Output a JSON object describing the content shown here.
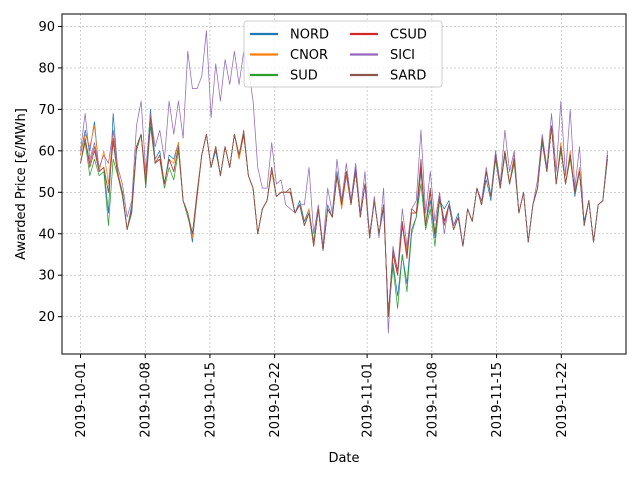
{
  "chart_data": {
    "type": "line",
    "xlabel": "Date",
    "ylabel": "Awarded Price [€/MWh]",
    "x_start": "2019-10-01",
    "x_end": "2019-11-27",
    "xlim": [
      "2019-09-29",
      "2019-11-29"
    ],
    "ylim": [
      11,
      93
    ],
    "y_ticks": [
      20,
      30,
      40,
      50,
      60,
      70,
      80,
      90
    ],
    "x_ticks": [
      "2019-10-01",
      "2019-10-08",
      "2019-10-15",
      "2019-10-22",
      "2019-11-01",
      "2019-11-08",
      "2019-11-15",
      "2019-11-22"
    ],
    "grid": true,
    "legend": {
      "placement": "top-center",
      "columns": 2
    },
    "series": [
      {
        "name": "NORD",
        "color": "#1f77b4",
        "values": [
          59,
          65,
          60,
          67,
          55,
          56,
          45,
          69,
          55,
          49,
          41,
          47,
          60,
          64,
          53,
          70,
          58,
          60,
          52,
          59,
          58,
          62,
          48,
          45,
          38,
          49,
          59,
          64,
          56,
          60,
          54,
          61,
          56,
          64,
          58,
          64,
          54,
          51,
          40,
          46,
          48,
          55,
          49,
          50,
          50,
          50,
          45,
          48,
          43,
          46,
          38,
          46,
          36,
          47,
          44,
          55,
          47,
          55,
          48,
          56,
          44,
          52,
          40,
          48,
          40,
          46,
          21,
          33,
          25,
          35,
          28,
          41,
          44,
          55,
          42,
          48,
          39,
          48,
          46,
          48,
          42,
          45,
          37,
          46,
          43,
          51,
          47,
          53,
          48,
          58,
          51,
          59,
          52,
          59,
          45,
          50,
          38,
          47,
          51,
          62,
          55,
          66,
          52,
          61,
          52,
          59,
          49,
          55,
          43,
          48,
          38,
          47,
          48,
          58
        ]
      },
      {
        "name": "CNOR",
        "color": "#ff7f0e",
        "values": [
          59,
          64,
          61,
          66,
          55,
          60,
          52,
          65,
          55,
          50,
          41,
          46,
          61,
          64,
          54,
          68,
          57,
          59,
          52,
          58,
          57,
          62,
          48,
          45,
          39,
          49,
          59,
          64,
          56,
          61,
          54,
          61,
          56,
          64,
          58,
          64,
          54,
          51,
          40,
          46,
          48,
          55,
          49,
          50,
          50,
          50,
          45,
          47,
          42,
          46,
          37,
          46,
          36,
          46,
          44,
          54,
          46,
          54,
          47,
          55,
          44,
          52,
          39,
          48,
          40,
          47,
          21,
          35,
          30,
          42,
          36,
          45,
          45,
          57,
          42,
          50,
          40,
          49,
          43,
          47,
          41,
          44,
          37,
          46,
          43,
          51,
          47,
          55,
          49,
          59,
          51,
          60,
          52,
          59,
          45,
          50,
          38,
          47,
          51,
          63,
          55,
          66,
          52,
          62,
          52,
          60,
          50,
          56,
          42,
          48,
          38,
          47,
          48,
          59
        ]
      },
      {
        "name": "SUD",
        "color": "#2ca02c",
        "values": [
          57,
          62,
          54,
          58,
          54,
          55,
          42,
          58,
          54,
          49,
          41,
          45,
          60,
          64,
          51,
          66,
          57,
          58,
          51,
          56,
          53,
          60,
          48,
          44,
          40,
          50,
          59,
          64,
          56,
          61,
          54,
          61,
          56,
          64,
          59,
          64,
          54,
          51,
          40,
          46,
          48,
          56,
          49,
          50,
          50,
          50,
          45,
          47,
          42,
          45,
          38,
          46,
          36,
          46,
          44,
          54,
          47,
          55,
          47,
          55,
          44,
          52,
          39,
          48,
          40,
          47,
          20,
          32,
          22,
          35,
          26,
          40,
          44,
          52,
          41,
          46,
          37,
          48,
          43,
          47,
          41,
          44,
          37,
          46,
          43,
          51,
          47,
          55,
          49,
          58,
          51,
          59,
          52,
          57,
          45,
          50,
          38,
          47,
          51,
          62,
          55,
          66,
          52,
          60,
          52,
          58,
          50,
          55,
          42,
          48,
          38,
          47,
          48,
          58
        ]
      },
      {
        "name": "CSUD",
        "color": "#d62728",
        "values": [
          57,
          63,
          56,
          60,
          55,
          56,
          50,
          63,
          54,
          50,
          41,
          46,
          61,
          64,
          52,
          68,
          57,
          58,
          52,
          58,
          55,
          61,
          48,
          45,
          40,
          50,
          59,
          64,
          56,
          61,
          54,
          61,
          56,
          64,
          59,
          64,
          54,
          51,
          40,
          46,
          48,
          56,
          49,
          50,
          50,
          50,
          45,
          47,
          42,
          45,
          37,
          46,
          36,
          46,
          44,
          54,
          47,
          55,
          47,
          55,
          44,
          52,
          39,
          48,
          40,
          47,
          20,
          35,
          30,
          42,
          34,
          45,
          45,
          56,
          42,
          50,
          40,
          49,
          43,
          47,
          41,
          44,
          37,
          46,
          43,
          51,
          47,
          55,
          49,
          59,
          51,
          60,
          52,
          58,
          45,
          50,
          38,
          47,
          51,
          63,
          55,
          66,
          52,
          61,
          52,
          59,
          50,
          55,
          42,
          48,
          38,
          47,
          48,
          59
        ]
      },
      {
        "name": "SICI",
        "color": "#9467bd",
        "values": [
          60,
          69,
          58,
          62,
          56,
          59,
          57,
          65,
          56,
          52,
          44,
          48,
          66,
          72,
          55,
          69,
          61,
          65,
          58,
          72,
          64,
          72,
          63,
          84,
          75,
          75,
          78,
          89,
          68,
          81,
          72,
          82,
          76,
          84,
          76,
          84,
          80,
          72,
          56,
          51,
          51,
          62,
          52,
          53,
          47,
          46,
          45,
          47,
          47,
          56,
          40,
          47,
          37,
          51,
          45,
          58,
          48,
          57,
          48,
          57,
          45,
          55,
          39,
          49,
          39,
          51,
          16,
          37,
          31,
          46,
          37,
          46,
          48,
          65,
          45,
          55,
          43,
          50,
          40,
          47,
          42,
          44,
          37,
          46,
          43,
          51,
          48,
          56,
          49,
          60,
          52,
          65,
          55,
          60,
          45,
          50,
          38,
          47,
          53,
          64,
          56,
          69,
          55,
          72,
          54,
          70,
          51,
          61,
          42,
          48,
          38,
          47,
          48,
          60
        ]
      },
      {
        "name": "SARD",
        "color": "#8c564b",
        "values": [
          57,
          63,
          57,
          61,
          55,
          56,
          50,
          62,
          54,
          50,
          41,
          46,
          61,
          64,
          52,
          68,
          57,
          59,
          52,
          58,
          55,
          61,
          48,
          45,
          40,
          49,
          59,
          64,
          56,
          61,
          54,
          61,
          56,
          64,
          59,
          65,
          54,
          51,
          40,
          46,
          48,
          56,
          49,
          50,
          50,
          51,
          45,
          47,
          42,
          45,
          37,
          46,
          36,
          46,
          44,
          54,
          47,
          55,
          47,
          55,
          44,
          52,
          39,
          48,
          40,
          47,
          20,
          36,
          31,
          43,
          35,
          46,
          45,
          58,
          42,
          51,
          40,
          49,
          42,
          47,
          41,
          44,
          37,
          46,
          43,
          51,
          47,
          55,
          49,
          59,
          51,
          60,
          52,
          58,
          45,
          50,
          38,
          47,
          51,
          63,
          55,
          66,
          52,
          61,
          52,
          59,
          50,
          55,
          42,
          48,
          38,
          47,
          48,
          59
        ]
      }
    ]
  }
}
